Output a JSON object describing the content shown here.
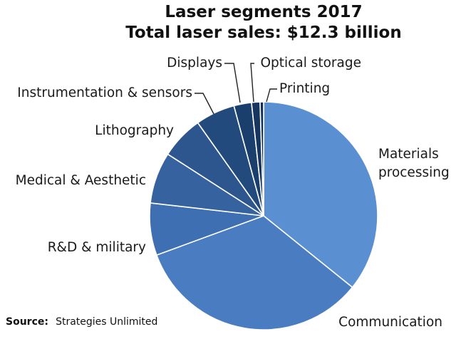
{
  "chart_data": {
    "type": "pie",
    "title": "Laser segments 2017",
    "subtitle": "Total laser sales: $12.3 billion",
    "categories": [
      "Materials processing",
      "Communication",
      "R&D & military",
      "Medical & Aesthetic",
      "Lithography",
      "Instrumentation & sensors",
      "Displays",
      "Optical storage",
      "Printing"
    ],
    "values": [
      35.8,
      33.6,
      7.4,
      7.3,
      6.1,
      5.6,
      2.5,
      1.2,
      0.5
    ],
    "unit": "%",
    "colors": [
      "#5a8fd2",
      "#4a7cc2",
      "#3f6fb3",
      "#36629f",
      "#2d568e",
      "#234a7c",
      "#1b3f6d",
      "#17355e",
      "#132e52"
    ],
    "start_angle_deg": 0,
    "direction": "clockwise",
    "legend": "none",
    "labels_outside": true
  },
  "source": {
    "label": "Source:",
    "text": "Strategies Unlimited"
  }
}
